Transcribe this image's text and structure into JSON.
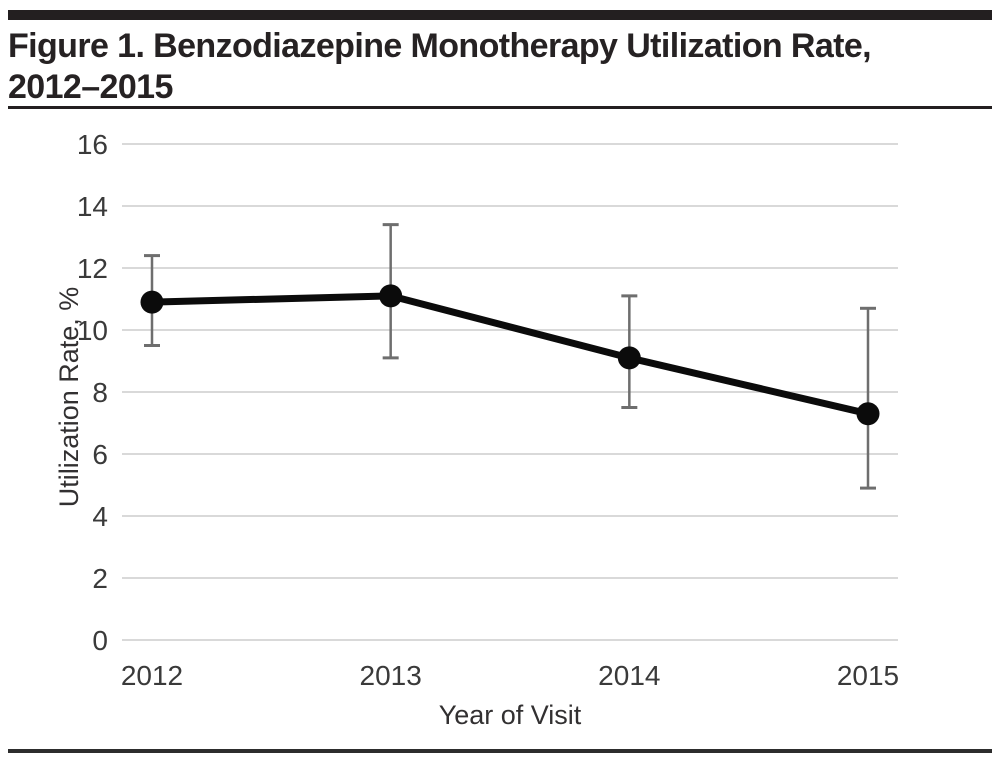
{
  "header": {
    "title_line1": "Figure 1. Benzodiazepine Monotherapy Utilization Rate,",
    "title_line2": "2012–2015"
  },
  "chart_data": {
    "type": "line",
    "title": "Figure 1. Benzodiazepine Monotherapy Utilization Rate, 2012–2015",
    "xlabel": "Year of Visit",
    "ylabel": "Utilization Rate, %",
    "categories": [
      "2012",
      "2013",
      "2014",
      "2015"
    ],
    "series": [
      {
        "values": [
          10.9,
          11.1,
          9.1,
          7.3
        ],
        "error_low": [
          9.5,
          9.1,
          7.5,
          4.9
        ],
        "error_high": [
          12.4,
          13.4,
          11.1,
          10.7
        ]
      }
    ],
    "ylim": [
      0,
      16
    ],
    "yticks": [
      0,
      2,
      4,
      6,
      8,
      10,
      12,
      14,
      16
    ],
    "grid": "horizontal",
    "legend": "none",
    "colors": {
      "line": "#0b0b0b",
      "marker": "#0b0b0b",
      "error_bar": "#6e6e6e",
      "gridline": "#d9d9d9",
      "tick_label": "#3a3a3a",
      "axis_title": "#323031",
      "rule": "#231f20"
    }
  }
}
